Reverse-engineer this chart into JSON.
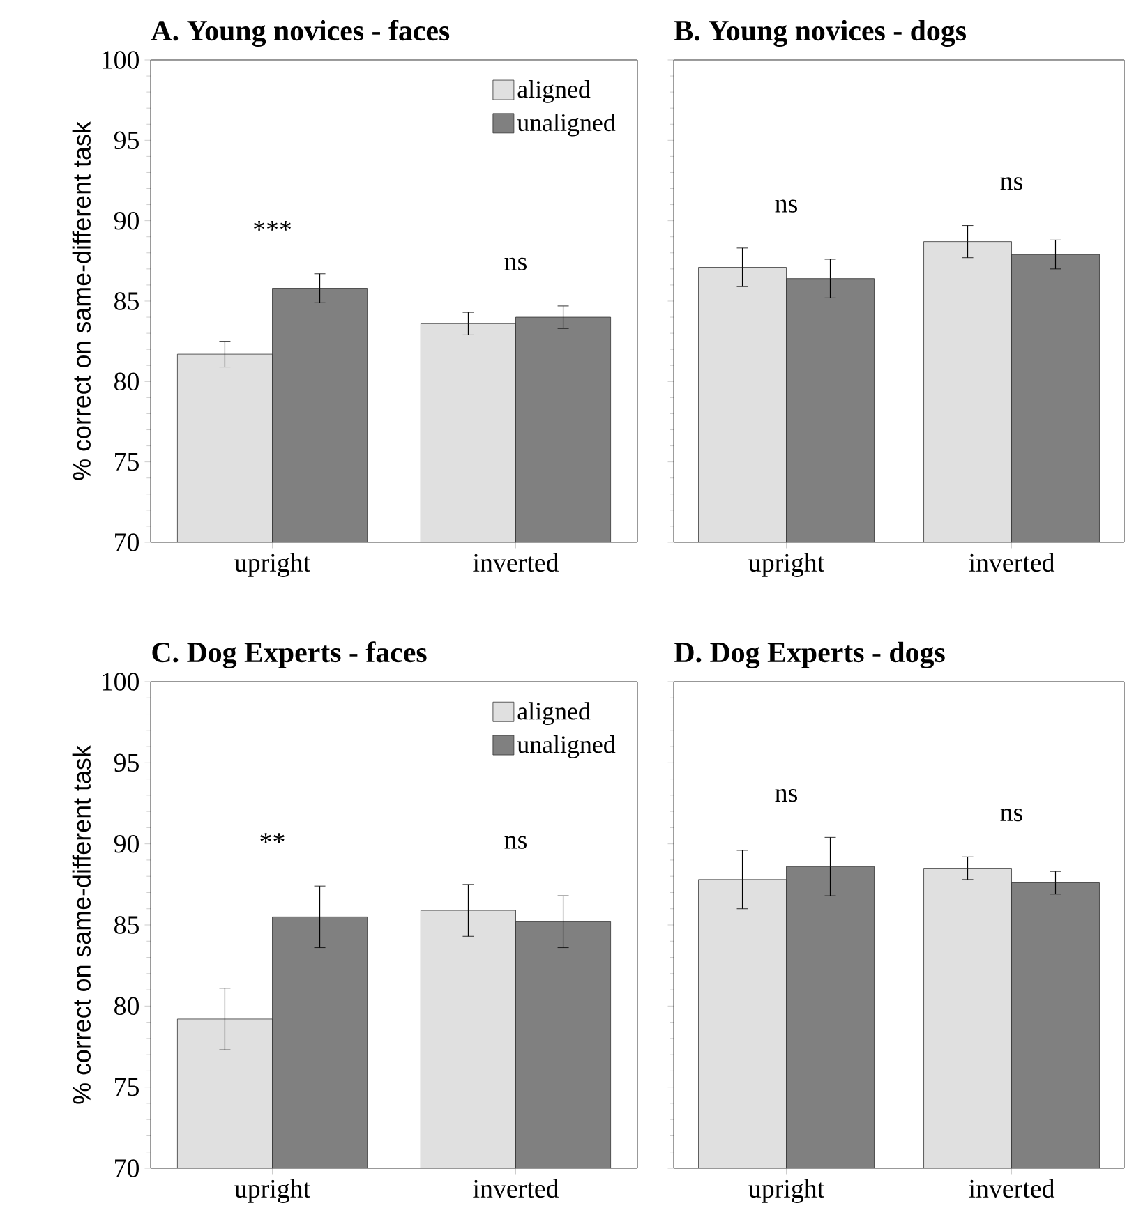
{
  "chart_data": [
    {
      "type": "bar",
      "title": "A. Young novices - faces",
      "ylabel": "% correct on same-different task",
      "categories": [
        "upright",
        "inverted"
      ],
      "series": [
        {
          "name": "aligned",
          "color": "#e0e0e0",
          "values": [
            81.7,
            83.6
          ],
          "errors": [
            0.8,
            0.7
          ]
        },
        {
          "name": "unaligned",
          "color": "#808080",
          "values": [
            85.8,
            84.0
          ],
          "errors": [
            0.9,
            0.7
          ]
        }
      ],
      "ylim": [
        70,
        100
      ],
      "yticks": [
        70,
        75,
        80,
        85,
        90,
        95,
        100
      ],
      "legend": "top right",
      "annotations": [
        "***",
        "ns"
      ]
    },
    {
      "type": "bar",
      "title": "B. Young novices - dogs",
      "categories": [
        "upright",
        "inverted"
      ],
      "series": [
        {
          "color": "#e0e0e0",
          "values": [
            87.1,
            88.7
          ],
          "errors": [
            1.2,
            1.0
          ]
        },
        {
          "color": "#808080",
          "values": [
            86.4,
            87.9
          ],
          "errors": [
            1.2,
            0.9
          ]
        }
      ],
      "ylim": [
        70,
        100
      ],
      "yticks": [
        70,
        75,
        80,
        85,
        90,
        95,
        100
      ],
      "tick_labels": "x",
      "annotations": [
        "ns",
        "ns"
      ]
    },
    {
      "type": "bar",
      "title": "C. Dog Experts - faces",
      "ylabel": "% correct on same-different task",
      "categories": [
        "upright",
        "inverted"
      ],
      "series": [
        {
          "name": "aligned",
          "color": "#e0e0e0",
          "values": [
            79.2,
            85.9
          ],
          "errors": [
            1.9,
            1.6
          ]
        },
        {
          "name": "unaligned",
          "color": "#808080",
          "values": [
            85.5,
            85.2
          ],
          "errors": [
            1.9,
            1.6
          ]
        }
      ],
      "ylim": [
        70,
        100
      ],
      "yticks": [
        70,
        75,
        80,
        85,
        90,
        95,
        100
      ],
      "legend": "top right",
      "annotations": [
        "**",
        "ns"
      ]
    },
    {
      "type": "bar",
      "title": "D. Dog Experts - dogs",
      "categories": [
        "upright",
        "inverted"
      ],
      "series": [
        {
          "color": "#e0e0e0",
          "values": [
            87.8,
            88.5
          ],
          "errors": [
            1.8,
            0.7
          ]
        },
        {
          "color": "#808080",
          "values": [
            88.6,
            87.6
          ],
          "errors": [
            1.8,
            0.7
          ]
        }
      ],
      "ylim": [
        70,
        100
      ],
      "yticks": [
        70,
        75,
        80,
        85,
        90,
        95,
        100
      ],
      "tick_labels": "x",
      "annotations": [
        "ns",
        "ns"
      ]
    }
  ]
}
